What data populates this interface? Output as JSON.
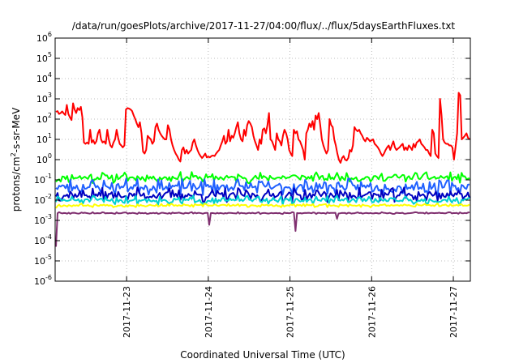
{
  "chart_data": {
    "type": "line",
    "title": "/data/run/goesPlots/archive/2017-11-27/04:00/flux/../flux/5daysEarthFluxes.txt",
    "xlabel": "Coordinated Universal Time (UTC)",
    "ylabel": "protons/cm²-s-sr-MeV",
    "ylabel_parts": {
      "pre": "protons/cm",
      "sup": "2",
      "post": "-s-sr-MeV"
    },
    "yscale": "log",
    "ylim_exponents": [
      -6,
      6
    ],
    "ytick_base": "10",
    "ytick_exponents": [
      "-6",
      "-5",
      "-4",
      "-3",
      "-2",
      "-1",
      "0",
      "1",
      "2",
      "3",
      "4",
      "5",
      "6"
    ],
    "xlim_days": [
      "2017-11-22 03:00",
      "2017-11-27 05:00"
    ],
    "xticks": [
      "2017-11-23",
      "2017-11-24",
      "2017-11-25",
      "2017-11-26",
      "2017-11-27"
    ],
    "grid": true,
    "legend": "none",
    "colors": {
      "red": "#ff0000",
      "green": "#00ff00",
      "blue": "#2060ff",
      "navy": "#0000c0",
      "cyan": "#00d0d0",
      "yellow": "#ffff00",
      "purple": "#803070"
    },
    "series": [
      {
        "color": "red",
        "values": [
          230,
          250,
          180,
          200,
          240,
          190,
          160,
          500,
          180,
          120,
          90,
          600,
          300,
          200,
          350,
          280,
          400,
          120,
          7,
          6,
          7,
          6,
          30,
          7,
          9,
          6,
          8,
          20,
          30,
          10,
          7,
          8,
          6,
          30,
          10,
          5,
          4,
          7,
          10,
          30,
          12,
          6,
          5,
          4,
          5,
          300,
          350,
          330,
          300,
          250,
          150,
          100,
          60,
          40,
          70,
          20,
          2.5,
          2,
          3,
          15,
          12,
          10,
          6,
          8,
          40,
          60,
          30,
          20,
          15,
          12,
          10,
          10,
          50,
          30,
          10,
          5,
          3,
          2,
          1.5,
          1,
          0.8,
          3,
          4,
          2,
          3,
          2,
          2.5,
          3,
          7,
          10,
          5,
          3,
          2,
          1.5,
          1.2,
          1.5,
          2,
          1.3,
          1.4,
          1.3,
          1.5,
          1.6,
          1.5,
          2,
          2.5,
          3,
          5,
          8,
          15,
          6,
          8,
          30,
          8,
          15,
          12,
          20,
          40,
          70,
          20,
          10,
          8,
          30,
          15,
          50,
          80,
          60,
          40,
          15,
          8,
          5,
          3,
          10,
          6,
          30,
          35,
          20,
          50,
          200,
          10,
          8,
          5,
          3,
          20,
          10,
          8,
          5,
          15,
          30,
          20,
          10,
          3,
          2,
          1.5,
          30,
          20,
          25,
          10,
          8,
          5,
          3,
          1,
          20,
          30,
          60,
          40,
          80,
          30,
          150,
          100,
          200,
          50,
          10,
          5,
          3,
          2,
          3,
          100,
          50,
          40,
          10,
          5,
          2,
          1,
          0.7,
          1.2,
          1.5,
          1,
          0.9,
          1.2,
          3,
          2.5,
          5,
          40,
          30,
          25,
          30,
          20,
          15,
          10,
          8,
          12,
          10,
          8,
          9,
          10,
          6,
          5,
          4,
          3,
          2,
          1.5,
          2,
          3,
          4,
          5,
          3,
          5,
          8,
          4,
          3,
          3.5,
          4,
          5,
          6,
          3,
          4,
          3,
          5,
          4,
          3,
          6,
          4,
          7,
          8,
          10,
          6,
          5,
          4,
          3,
          3,
          2,
          1.5,
          30,
          20,
          2,
          1.5,
          1.2,
          1000,
          150,
          10,
          7,
          6,
          6,
          5,
          5,
          4,
          1,
          4,
          20,
          2000,
          1500,
          10,
          12,
          15,
          20,
          12,
          10
        ]
      },
      {
        "color": "green",
        "start": 0.08,
        "base": 0.13,
        "amp": 0.3,
        "seed": 11
      },
      {
        "color": "blue",
        "start": 0.04,
        "base": 0.045,
        "amp": 0.45,
        "seed": 23
      },
      {
        "color": "navy",
        "start": 0.015,
        "base": 0.018,
        "amp": 0.4,
        "seed": 37
      },
      {
        "color": "cyan",
        "start": 0.008,
        "base": 0.01,
        "amp": 0.25,
        "seed": 51
      },
      {
        "color": "yellow",
        "start": 0.004,
        "base": 0.0055,
        "amp": 0.1,
        "seed": 67
      },
      {
        "color": "purple",
        "start": 5e-05,
        "base": 0.0023,
        "amp": 0.05,
        "seed": 79,
        "dips": [
          [
            0.37,
            0.0006
          ],
          [
            0.58,
            0.0003
          ],
          [
            0.68,
            0.0012
          ]
        ]
      }
    ]
  }
}
